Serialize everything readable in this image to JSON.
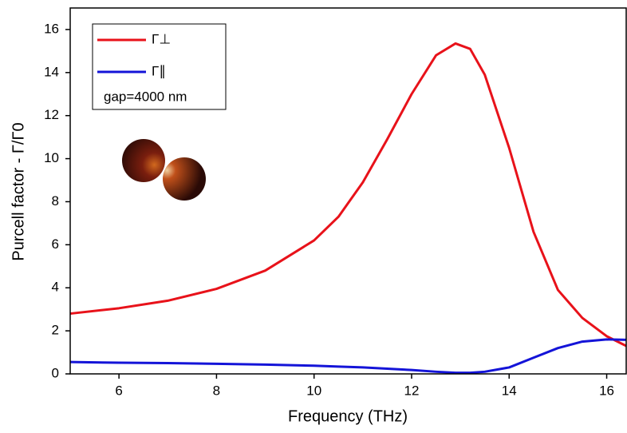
{
  "chart_data": {
    "type": "line",
    "xlabel": "Frequency (THz)",
    "ylabel": "Purcell factor - Γ/Γ0",
    "annotation": "gap=4000 nm",
    "x": [
      5,
      6,
      7,
      8,
      9,
      10,
      10.5,
      11,
      11.5,
      12,
      12.5,
      12.9,
      13.2,
      13.5,
      14,
      14.5,
      15,
      15.5,
      16,
      16.4
    ],
    "series": [
      {
        "name": "Γ⊥",
        "color": "#e8121a",
        "values": [
          2.8,
          3.05,
          3.4,
          3.95,
          4.8,
          6.2,
          7.3,
          8.9,
          10.9,
          13.0,
          14.8,
          15.35,
          15.1,
          13.9,
          10.5,
          6.6,
          3.9,
          2.6,
          1.75,
          1.3
        ]
      },
      {
        "name": "Γ∥",
        "color": "#1414d8",
        "values": [
          0.55,
          0.52,
          0.5,
          0.47,
          0.43,
          0.38,
          0.34,
          0.3,
          0.24,
          0.18,
          0.1,
          0.05,
          0.05,
          0.1,
          0.3,
          0.75,
          1.2,
          1.5,
          1.6,
          1.58
        ]
      }
    ],
    "xlim": [
      5,
      16.4
    ],
    "xticks": [
      6,
      8,
      10,
      12,
      14,
      16
    ],
    "ylim": [
      0,
      17
    ],
    "yticks": [
      0,
      2,
      4,
      6,
      8,
      10,
      12,
      14,
      16
    ]
  }
}
